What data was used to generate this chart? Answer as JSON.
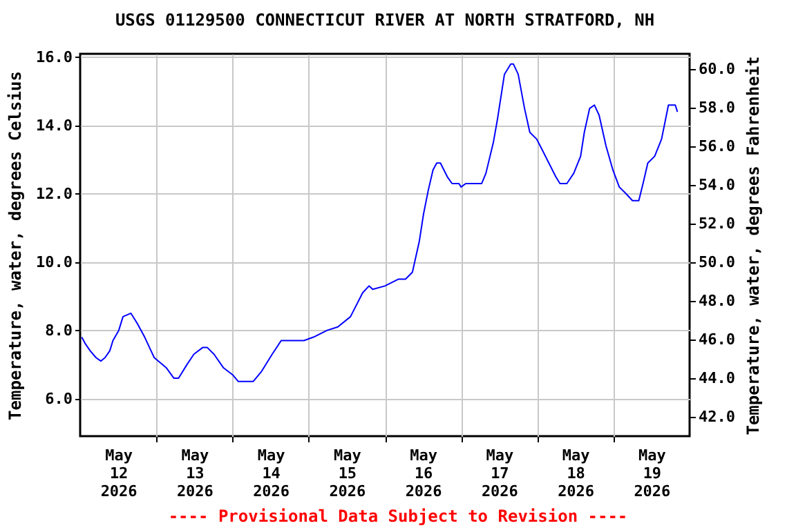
{
  "chart_data": {
    "type": "line",
    "title": "USGS 01129500 CONNECTICUT RIVER AT NORTH STRATFORD, NH",
    "ylabel": "Temperature, water, degrees Celsius",
    "y2label": "Temperature, water, degrees Fahrenheit",
    "annotations": [
      "---- Provisional Data Subject to Revision ----"
    ],
    "grid": true,
    "xlim": [
      "2026-05-12T00:00",
      "2026-05-20T00:00"
    ],
    "xticks": [
      {
        "value": "2026-05-12T12:00",
        "label": "May\n12\n2026"
      },
      {
        "value": "2026-05-13T00:00",
        "label": null
      },
      {
        "value": "2026-05-13T12:00",
        "label": "May\n13\n2026"
      },
      {
        "value": "2026-05-14T00:00",
        "label": null
      },
      {
        "value": "2026-05-14T12:00",
        "label": "May\n14\n2026"
      },
      {
        "value": "2026-05-15T00:00",
        "label": null
      },
      {
        "value": "2026-05-15T12:00",
        "label": "May\n15\n2026"
      },
      {
        "value": "2026-05-16T00:00",
        "label": null
      },
      {
        "value": "2026-05-16T12:00",
        "label": "May\n16\n2026"
      },
      {
        "value": "2026-05-17T00:00",
        "label": null
      },
      {
        "value": "2026-05-17T12:00",
        "label": "May\n17\n2026"
      },
      {
        "value": "2026-05-18T00:00",
        "label": null
      },
      {
        "value": "2026-05-18T12:00",
        "label": "May\n18\n2026"
      },
      {
        "value": "2026-05-19T00:00",
        "label": null
      },
      {
        "value": "2026-05-19T12:00",
        "label": "May\n19\n2026"
      }
    ],
    "ylim": [
      4.9,
      16.1
    ],
    "yticks": [
      {
        "value": 6,
        "label": "6.0"
      },
      {
        "value": 8,
        "label": "8.0"
      },
      {
        "value": 10,
        "label": "10.0"
      },
      {
        "value": 12,
        "label": "12.0"
      },
      {
        "value": 14,
        "label": "14.0"
      },
      {
        "value": 16,
        "label": "16.0"
      }
    ],
    "y2lim": [
      41.0,
      60.8
    ],
    "y2ticks": [
      {
        "value": 42,
        "label": "42.0"
      },
      {
        "value": 44,
        "label": "44.0"
      },
      {
        "value": 46,
        "label": "46.0"
      },
      {
        "value": 48,
        "label": "48.0"
      },
      {
        "value": 50,
        "label": "50.0"
      },
      {
        "value": 52,
        "label": "52.0"
      },
      {
        "value": 54,
        "label": "54.0"
      },
      {
        "value": 56,
        "label": "56.0"
      },
      {
        "value": 58,
        "label": "58.0"
      },
      {
        "value": 60,
        "label": "60.0"
      }
    ],
    "x": [
      "2026-05-12T00:30",
      "2026-05-12T01:40",
      "2026-05-12T03:10",
      "2026-05-12T05:00",
      "2026-05-12T06:30",
      "2026-05-12T07:50",
      "2026-05-12T09:20",
      "2026-05-12T10:20",
      "2026-05-12T12:10",
      "2026-05-12T13:30",
      "2026-05-12T16:00",
      "2026-05-12T18:00",
      "2026-05-12T20:20",
      "2026-05-12T23:20",
      "2026-05-13T03:10",
      "2026-05-13T05:30",
      "2026-05-13T07:00",
      "2026-05-13T09:40",
      "2026-05-13T11:50",
      "2026-05-13T14:40",
      "2026-05-13T16:00",
      "2026-05-13T18:10",
      "2026-05-13T21:10",
      "2026-05-14T00:00",
      "2026-05-14T01:50",
      "2026-05-14T06:30",
      "2026-05-14T09:10",
      "2026-05-14T12:30",
      "2026-05-14T15:20",
      "2026-05-14T16:50",
      "2026-05-14T22:30",
      "2026-05-15T01:30",
      "2026-05-15T05:50",
      "2026-05-15T09:10",
      "2026-05-15T13:10",
      "2026-05-15T17:00",
      "2026-05-15T19:00",
      "2026-05-15T20:10",
      "2026-05-16T00:00",
      "2026-05-16T04:20",
      "2026-05-16T06:30",
      "2026-05-16T08:40",
      "2026-05-16T10:50",
      "2026-05-16T12:10",
      "2026-05-16T13:40",
      "2026-05-16T15:10",
      "2026-05-16T16:20",
      "2026-05-16T17:30",
      "2026-05-16T19:40",
      "2026-05-16T21:10",
      "2026-05-16T23:20",
      "2026-05-17T00:00",
      "2026-05-17T01:30",
      "2026-05-17T06:30",
      "2026-05-17T07:50",
      "2026-05-17T10:10",
      "2026-05-17T11:30",
      "2026-05-17T13:40",
      "2026-05-17T15:40",
      "2026-05-17T16:30",
      "2026-05-17T18:00",
      "2026-05-17T20:00",
      "2026-05-17T21:40",
      "2026-05-17T23:50",
      "2026-05-18T01:30",
      "2026-05-18T03:40",
      "2026-05-18T05:50",
      "2026-05-18T07:10",
      "2026-05-18T09:20",
      "2026-05-18T11:30",
      "2026-05-18T13:40",
      "2026-05-18T14:50",
      "2026-05-18T16:30",
      "2026-05-18T18:00",
      "2026-05-18T19:30",
      "2026-05-18T21:40",
      "2026-05-18T23:50",
      "2026-05-19T01:50",
      "2026-05-19T04:00",
      "2026-05-19T06:00",
      "2026-05-19T08:00",
      "2026-05-19T09:20",
      "2026-05-19T10:50",
      "2026-05-19T13:00",
      "2026-05-19T15:10",
      "2026-05-19T17:20",
      "2026-05-19T19:30",
      "2026-05-19T20:10"
    ],
    "series": [
      {
        "color": "#0000ff",
        "values": [
          7.8,
          7.6,
          7.4,
          7.2,
          7.1,
          7.2,
          7.4,
          7.7,
          8.0,
          8.4,
          8.5,
          8.2,
          7.8,
          7.2,
          6.9,
          6.6,
          6.6,
          7.0,
          7.3,
          7.5,
          7.5,
          7.3,
          6.9,
          6.7,
          6.5,
          6.5,
          6.8,
          7.3,
          7.7,
          7.7,
          7.7,
          7.8,
          8.0,
          8.1,
          8.4,
          9.1,
          9.3,
          9.2,
          9.3,
          9.5,
          9.5,
          9.7,
          10.6,
          11.4,
          12.1,
          12.7,
          12.9,
          12.9,
          12.5,
          12.3,
          12.3,
          12.2,
          12.3,
          12.3,
          12.6,
          13.5,
          14.2,
          15.5,
          15.8,
          15.8,
          15.5,
          14.5,
          13.8,
          13.6,
          13.3,
          12.9,
          12.5,
          12.3,
          12.3,
          12.6,
          13.1,
          13.8,
          14.5,
          14.6,
          14.3,
          13.4,
          12.7,
          12.2,
          12.0,
          11.8,
          11.8,
          12.3,
          12.9,
          13.1,
          13.6,
          14.6,
          14.6,
          14.4
        ]
      }
    ]
  }
}
